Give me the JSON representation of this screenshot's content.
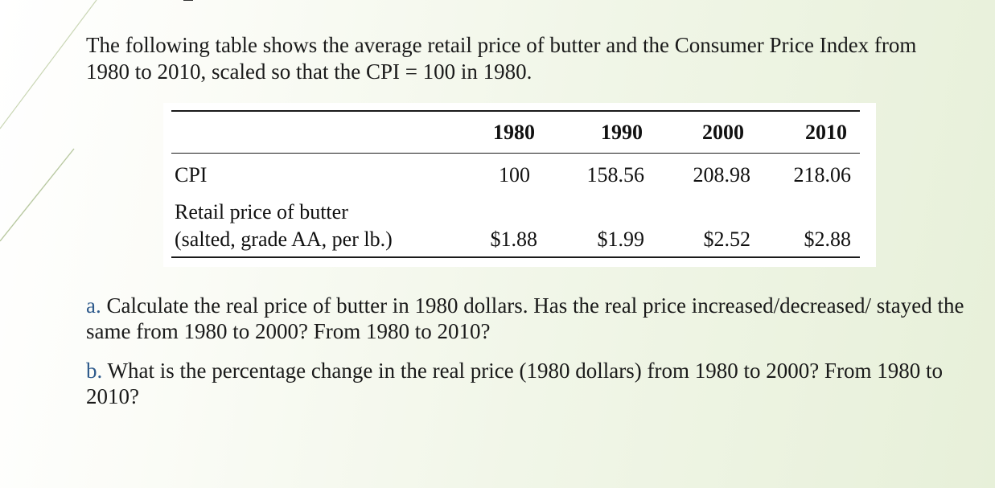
{
  "intro": {
    "line1": "The following table shows the average retail price of butter and the Consumer Price Index from",
    "line2": "1980 to 2010, scaled so that the CPI = 100 in 1980."
  },
  "table": {
    "years": [
      "1980",
      "1990",
      "2000",
      "2010"
    ],
    "rows": [
      {
        "label_line1": "CPI",
        "values": [
          "100",
          "158.56",
          "208.98",
          "218.06"
        ]
      },
      {
        "label_line1": "Retail price of butter",
        "label_line2": "(salted, grade AA, per lb.)",
        "values": [
          "$1.88",
          "$1.99",
          "$2.52",
          "$2.88"
        ]
      }
    ]
  },
  "questions": {
    "a_letter": "a.",
    "a_text": " Calculate the real price of butter in 1980 dollars. Has the real price increased/decreased/ stayed the same from 1980 to 2000? From 1980 to 2010?",
    "b_letter": "b.",
    "b_text": " What is the percentage change in the real price (1980 dollars) from 1980 to 2000? From 1980 to 2010?"
  }
}
